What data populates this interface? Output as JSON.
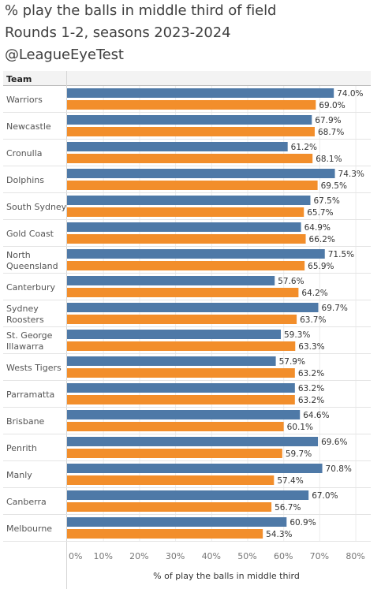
{
  "title": {
    "line1": "% play the balls in middle third of field",
    "line2": "Rounds 1-2, seasons 2023-2024",
    "line3": "@LeagueEyeTest"
  },
  "colors": {
    "series2023": "#4e79a7",
    "series2024": "#f28e2b"
  },
  "chart_data": {
    "type": "bar",
    "orientation": "horizontal",
    "row_header": "Team",
    "xlabel": "% of play the balls in middle third",
    "xlim": [
      0,
      80
    ],
    "x_ticks": [
      "0%",
      "10%",
      "20%",
      "30%",
      "40%",
      "50%",
      "60%",
      "70%",
      "80%"
    ],
    "categories": [
      "Warriors",
      "Newcastle",
      "Cronulla",
      "Dolphins",
      "South Sydney",
      "Gold Coast",
      "North Queensland",
      "Canterbury",
      "Sydney Roosters",
      "St. George Illawarra",
      "Wests Tigers",
      "Parramatta",
      "Brisbane",
      "Penrith",
      "Manly",
      "Canberra",
      "Melbourne"
    ],
    "category_lines": [
      [
        "Warriors"
      ],
      [
        "Newcastle"
      ],
      [
        "Cronulla"
      ],
      [
        "Dolphins"
      ],
      [
        "South Sydney"
      ],
      [
        "Gold Coast"
      ],
      [
        "North",
        "Queensland"
      ],
      [
        "Canterbury"
      ],
      [
        "Sydney",
        "Roosters"
      ],
      [
        "St. George",
        "Illawarra"
      ],
      [
        "Wests Tigers"
      ],
      [
        "Parramatta"
      ],
      [
        "Brisbane"
      ],
      [
        "Penrith"
      ],
      [
        "Manly"
      ],
      [
        "Canberra"
      ],
      [
        "Melbourne"
      ]
    ],
    "series": [
      {
        "values": [
          74.0,
          67.9,
          61.2,
          74.3,
          67.5,
          64.9,
          71.5,
          57.6,
          69.7,
          59.3,
          57.9,
          63.2,
          64.6,
          69.6,
          70.8,
          67.0,
          60.9
        ]
      },
      {
        "values": [
          69.0,
          68.7,
          68.1,
          69.5,
          65.7,
          66.2,
          65.9,
          64.2,
          63.7,
          63.3,
          63.2,
          63.2,
          60.1,
          59.7,
          57.4,
          56.7,
          54.3
        ]
      }
    ],
    "grid": true
  }
}
